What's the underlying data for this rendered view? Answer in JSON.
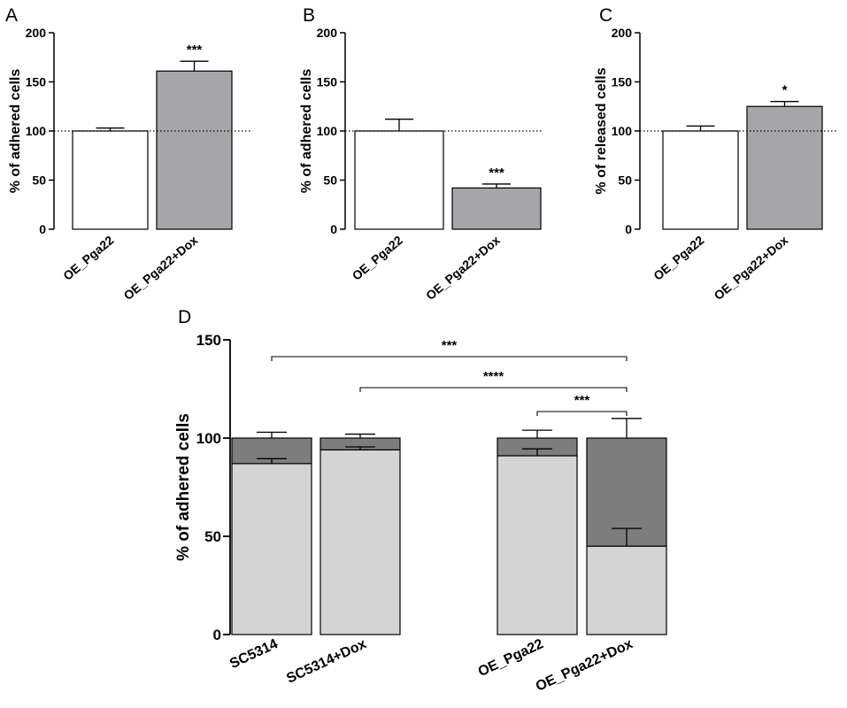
{
  "colors": {
    "white_bar": "#ffffff",
    "gray_bar": "#a6a6a8",
    "light_bar": "#d4d4d4",
    "dark_bar": "#7d7d7d",
    "axis": "#000000"
  },
  "chart_data": [
    {
      "type": "bar",
      "panel": "A",
      "ylabel": "% of adhered cells",
      "ylim": [
        0,
        200
      ],
      "yticks": [
        "0",
        "50",
        "100",
        "150",
        "200"
      ],
      "reference_line": 100,
      "categories": [
        "OE_Pga22",
        "OE_Pga22+Dox"
      ],
      "values": [
        100,
        161
      ],
      "errors": [
        3,
        10
      ],
      "annotations": [
        "",
        "***"
      ]
    },
    {
      "type": "bar",
      "panel": "B",
      "ylabel": "% of adhered cells",
      "ylim": [
        0,
        200
      ],
      "yticks": [
        "0",
        "50",
        "100",
        "150",
        "200"
      ],
      "reference_line": 100,
      "categories": [
        "OE_Pga22",
        "OE_Pga22+Dox"
      ],
      "values": [
        100,
        42
      ],
      "errors": [
        12,
        4
      ],
      "annotations": [
        "",
        "***"
      ]
    },
    {
      "type": "bar",
      "panel": "C",
      "ylabel": "% of released cells",
      "ylim": [
        0,
        200
      ],
      "yticks": [
        "0",
        "50",
        "100",
        "150",
        "200"
      ],
      "reference_line": 100,
      "categories": [
        "OE_Pga22",
        "OE_Pga22+Dox"
      ],
      "values": [
        100,
        125
      ],
      "errors": [
        5,
        5
      ],
      "annotations": [
        "",
        "*"
      ]
    },
    {
      "type": "bar",
      "panel": "D",
      "stacked": true,
      "ylabel": "% of adhered cells",
      "ylim": [
        0,
        150
      ],
      "yticks": [
        "0",
        "50",
        "100",
        "150"
      ],
      "categories": [
        "SC5314",
        "SC5314+Dox",
        "OE_Pga22",
        "OE_Pga22+Dox"
      ],
      "series": [
        {
          "values": [
            87,
            94,
            91,
            45
          ],
          "errors": [
            2.5,
            1.5,
            3.5,
            9
          ]
        },
        {
          "values": [
            13,
            6,
            9,
            55
          ],
          "errors": [
            3,
            2,
            4,
            10
          ]
        }
      ],
      "comparisons": [
        {
          "from": 0,
          "to": 3,
          "label": "***"
        },
        {
          "from": 1,
          "to": 3,
          "label": "****"
        },
        {
          "from": 2,
          "to": 3,
          "label": "***"
        }
      ]
    }
  ]
}
